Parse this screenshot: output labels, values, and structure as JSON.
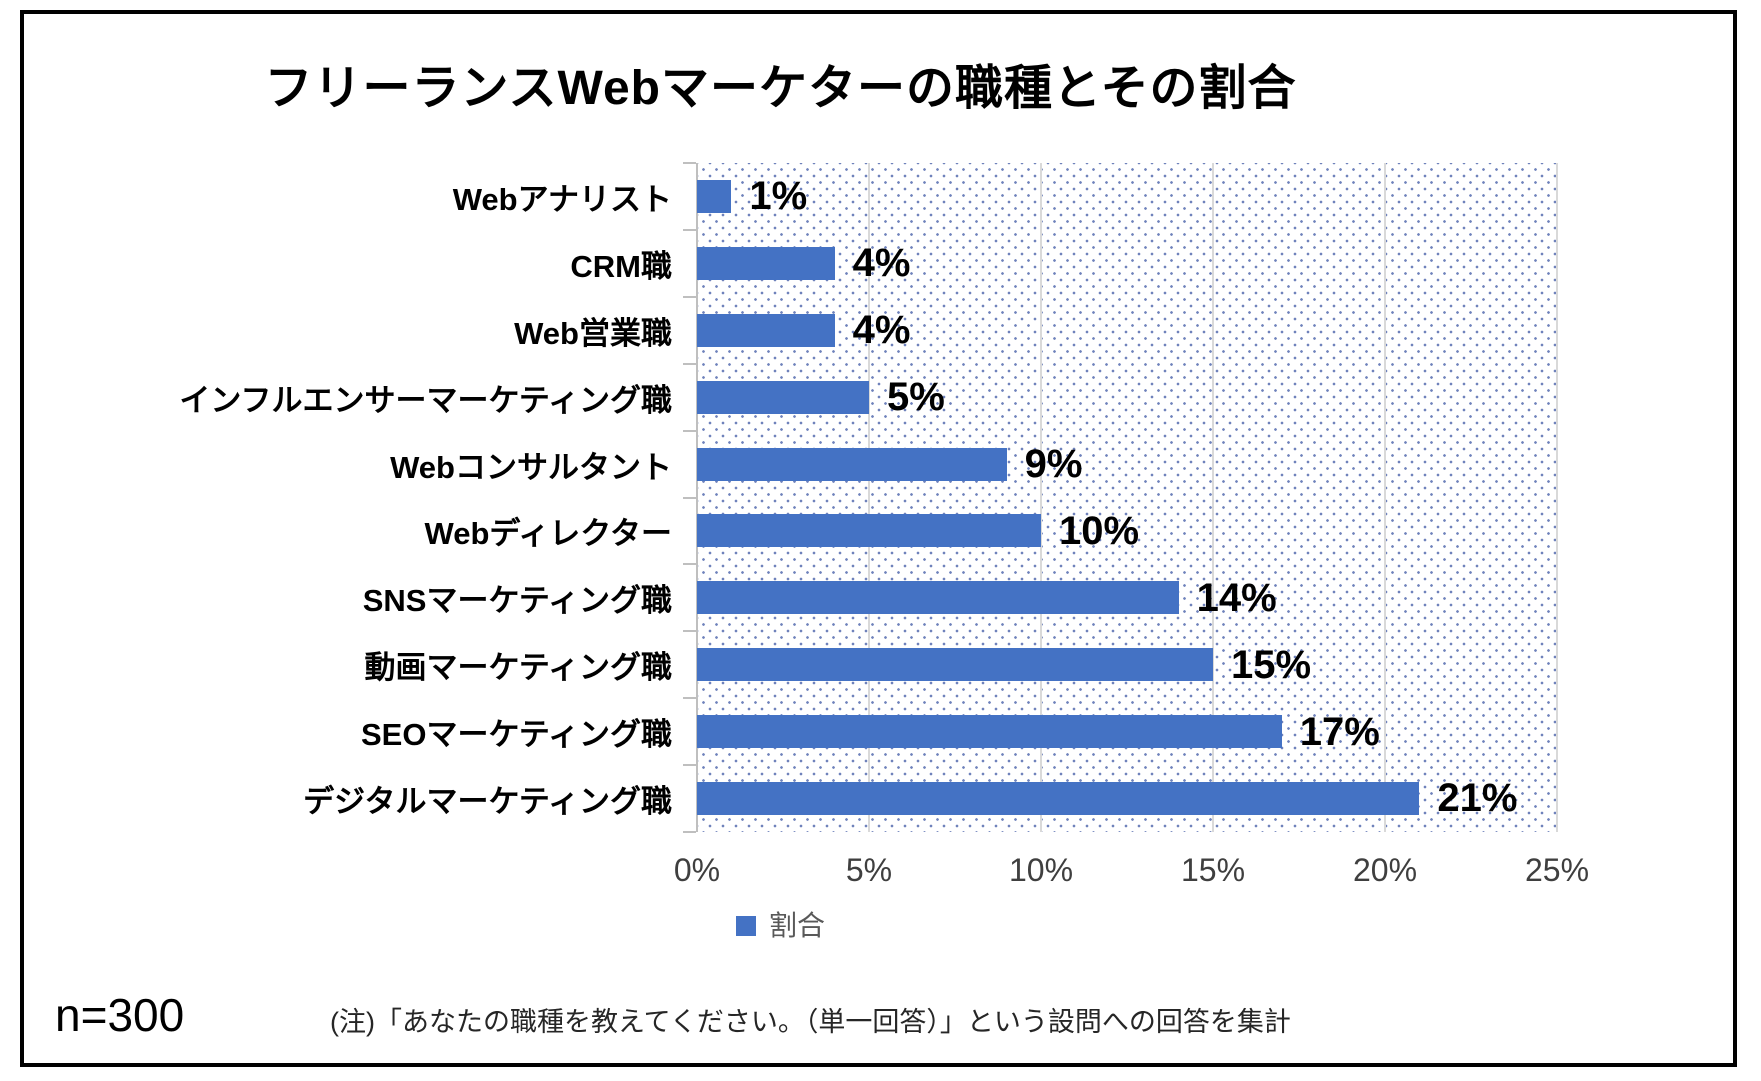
{
  "chart_data": {
    "type": "bar",
    "orientation": "horizontal",
    "title": "フリーランスWebマーケターの職種とその割合",
    "categories": [
      "Webアナリスト",
      "CRM職",
      "Web営業職",
      "インフルエンサーマーケティング職",
      "Webコンサルタント",
      "Webディレクター",
      "SNSマーケティング職",
      "動画マーケティング職",
      "SEOマーケティング職",
      "デジタルマーケティング職"
    ],
    "series": [
      {
        "name": "割合",
        "values": [
          1,
          4,
          4,
          5,
          9,
          10,
          14,
          15,
          17,
          21
        ]
      }
    ],
    "value_labels": [
      "1%",
      "4%",
      "4%",
      "5%",
      "9%",
      "10%",
      "14%",
      "15%",
      "17%",
      "21%"
    ],
    "x_tick_labels": [
      "0%",
      "5%",
      "10%",
      "15%",
      "20%",
      "25%"
    ],
    "xlim": [
      0,
      25
    ],
    "grid": true,
    "legend_position": "bottom"
  },
  "legend": {
    "label": "割合",
    "color": "#4472C4"
  },
  "footer": {
    "sample_size": "n=300",
    "note": "(注)「あなたの職種を教えてください。（単一回答）」という設問への回答を集計"
  },
  "colors": {
    "bar": "#4472C4",
    "pattern_dot": "#6f82bb",
    "gridline": "#d9d9d9",
    "axis": "#bfbfbf",
    "axis_label": "#3f3f3f",
    "legend_text": "#595959"
  }
}
